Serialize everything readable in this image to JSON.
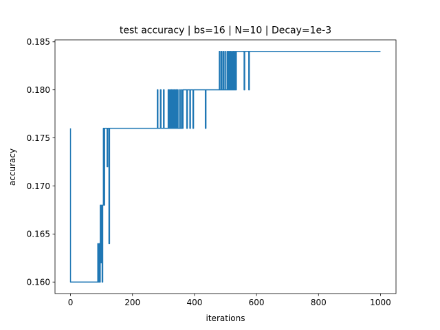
{
  "chart_data": {
    "type": "line",
    "title": "test accuracy | bs=16 | N=10 | Decay=1e-3",
    "xlabel": "iterations",
    "ylabel": "accuracy",
    "xlim": [
      -50,
      1050
    ],
    "ylim": [
      0.1588,
      0.1852
    ],
    "xticks": [
      0,
      200,
      400,
      600,
      800,
      1000
    ],
    "yticks": [
      0.16,
      0.165,
      0.17,
      0.175,
      0.18,
      0.185
    ],
    "xtick_labels": [
      "0",
      "200",
      "400",
      "600",
      "800",
      "1000"
    ],
    "ytick_labels": [
      "0.160",
      "0.165",
      "0.170",
      "0.175",
      "0.180",
      "0.185"
    ],
    "grid": false,
    "series": [
      {
        "color": "#1f77b4",
        "x": [
          0,
          0,
          1,
          88,
          88,
          89,
          89,
          92,
          92,
          94,
          94,
          96,
          96,
          98,
          98,
          100,
          100,
          102,
          102,
          104,
          104,
          106,
          106,
          108,
          108,
          110,
          110,
          112,
          112,
          118,
          118,
          120,
          120,
          124,
          124,
          126,
          126,
          128,
          128,
          130,
          130,
          280,
          280,
          282,
          282,
          290,
          290,
          292,
          292,
          300,
          300,
          302,
          302,
          315,
          315,
          317,
          317,
          320,
          320,
          322,
          322,
          325,
          325,
          327,
          327,
          330,
          330,
          332,
          332,
          335,
          335,
          337,
          337,
          340,
          340,
          342,
          342,
          345,
          345,
          347,
          347,
          352,
          352,
          354,
          354,
          358,
          358,
          360,
          360,
          363,
          363,
          365,
          365,
          375,
          375,
          377,
          377,
          385,
          385,
          387,
          387,
          395,
          395,
          397,
          397,
          435,
          435,
          437,
          437,
          480,
          480,
          482,
          482,
          486,
          486,
          488,
          488,
          492,
          492,
          494,
          494,
          498,
          498,
          500,
          500,
          505,
          505,
          507,
          507,
          510,
          510,
          512,
          512,
          515,
          515,
          517,
          517,
          520,
          520,
          522,
          522,
          525,
          525,
          527,
          527,
          530,
          530,
          532,
          532,
          535,
          535,
          537,
          537,
          560,
          560,
          562,
          562,
          575,
          575,
          577,
          577,
          1000
        ],
        "y": [
          0.176,
          0.16,
          0.16,
          0.16,
          0.164,
          0.164,
          0.16,
          0.16,
          0.164,
          0.164,
          0.16,
          0.16,
          0.168,
          0.168,
          0.162,
          0.162,
          0.168,
          0.168,
          0.16,
          0.16,
          0.168,
          0.168,
          0.176,
          0.176,
          0.168,
          0.168,
          0.176,
          0.176,
          0.176,
          0.176,
          0.172,
          0.172,
          0.176,
          0.176,
          0.164,
          0.164,
          0.176,
          0.176,
          0.176,
          0.176,
          0.176,
          0.176,
          0.18,
          0.18,
          0.176,
          0.176,
          0.18,
          0.18,
          0.176,
          0.176,
          0.18,
          0.18,
          0.176,
          0.176,
          0.18,
          0.18,
          0.176,
          0.176,
          0.18,
          0.18,
          0.176,
          0.176,
          0.18,
          0.18,
          0.176,
          0.176,
          0.18,
          0.18,
          0.176,
          0.176,
          0.18,
          0.18,
          0.176,
          0.176,
          0.18,
          0.18,
          0.176,
          0.176,
          0.18,
          0.18,
          0.176,
          0.176,
          0.18,
          0.18,
          0.176,
          0.176,
          0.18,
          0.18,
          0.176,
          0.176,
          0.18,
          0.18,
          0.18,
          0.18,
          0.176,
          0.176,
          0.18,
          0.18,
          0.176,
          0.176,
          0.18,
          0.18,
          0.176,
          0.176,
          0.18,
          0.18,
          0.176,
          0.176,
          0.18,
          0.18,
          0.184,
          0.184,
          0.18,
          0.18,
          0.184,
          0.184,
          0.18,
          0.18,
          0.184,
          0.184,
          0.18,
          0.18,
          0.184,
          0.184,
          0.18,
          0.18,
          0.184,
          0.184,
          0.18,
          0.18,
          0.184,
          0.184,
          0.18,
          0.18,
          0.184,
          0.184,
          0.18,
          0.18,
          0.184,
          0.184,
          0.18,
          0.18,
          0.184,
          0.184,
          0.18,
          0.18,
          0.184,
          0.184,
          0.18,
          0.18,
          0.184,
          0.184,
          0.184,
          0.184,
          0.18,
          0.18,
          0.184,
          0.184,
          0.18,
          0.18,
          0.184,
          0.184
        ]
      }
    ]
  }
}
